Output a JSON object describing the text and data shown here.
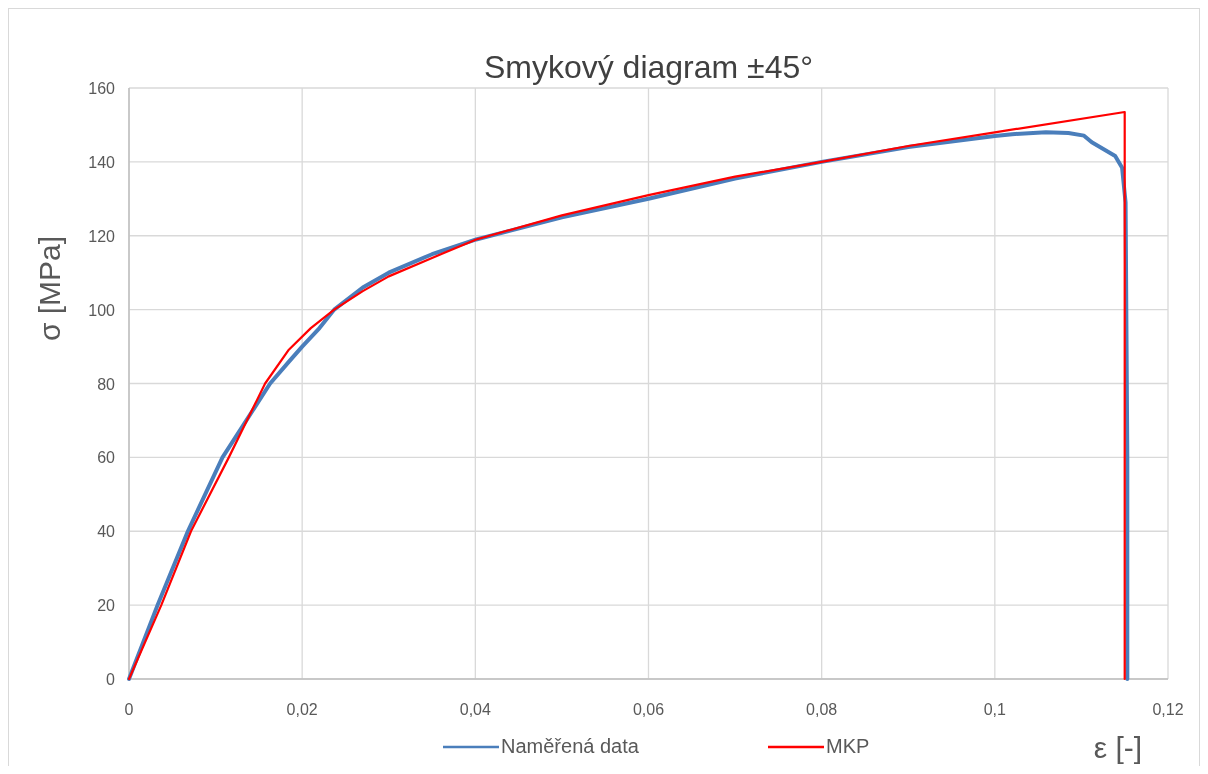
{
  "chart_data": {
    "type": "line",
    "title": "Smykový diagram ±45°",
    "xlabel": "ε [-]",
    "ylabel": "σ [MPa]",
    "xlim": [
      0,
      0.12
    ],
    "ylim": [
      0,
      160
    ],
    "xticks": [
      0,
      {
        "value": 0.02,
        "label": "0,02"
      },
      {
        "value": 0.04,
        "label": "0,04"
      },
      {
        "value": 0.06,
        "label": "0,06"
      },
      {
        "value": 0.08,
        "label": "0,08"
      },
      {
        "value": 0.1,
        "label": "0,1"
      },
      {
        "value": 0.12,
        "label": "0,12"
      }
    ],
    "yticks": [
      0,
      20,
      40,
      60,
      80,
      100,
      120,
      140,
      160
    ],
    "grid": true,
    "legend": "bottom",
    "marker": "none",
    "line_style": "solid",
    "series": [
      {
        "name": "Naměřená data",
        "color": "#4a7ebb",
        "x": [
          0,
          0.0033,
          0.0068,
          0.0108,
          0.013,
          0.0163,
          0.0185,
          0.02,
          0.022,
          0.0237,
          0.027,
          0.03,
          0.035,
          0.0401,
          0.05,
          0.06,
          0.07,
          0.08,
          0.09,
          0.1,
          0.102,
          0.1059,
          0.1085,
          0.1103,
          0.1112,
          0.1139,
          0.1147,
          0.1151,
          0.1153,
          0.1153
        ],
        "values": [
          0,
          20,
          40,
          60,
          68,
          80,
          86,
          90,
          95,
          100,
          106,
          110,
          115,
          119,
          125,
          130,
          135.5,
          140,
          144,
          147,
          147.5,
          148,
          147.8,
          147.1,
          145.3,
          141.6,
          138.4,
          129,
          60,
          0
        ]
      },
      {
        "name": "MKP",
        "color": "#ff0000",
        "x": [
          0,
          0.00373,
          0.00716,
          0.01153,
          0.01572,
          0.0184,
          0.021,
          0.0237,
          0.027,
          0.03,
          0.035,
          0.0401,
          0.05,
          0.06,
          0.07,
          0.08,
          0.09,
          0.1,
          0.115,
          0.115
        ],
        "values": [
          0,
          20,
          40,
          60,
          80,
          89,
          95,
          100,
          105,
          109,
          114,
          119,
          125.5,
          131,
          136,
          140,
          144.3,
          148,
          153.5,
          0
        ]
      }
    ]
  }
}
